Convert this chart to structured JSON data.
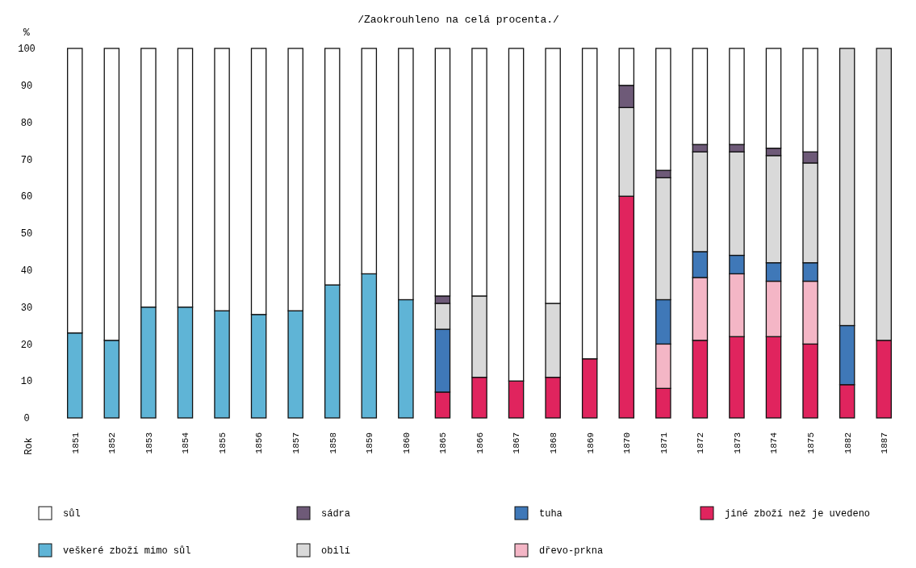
{
  "chart_data": {
    "type": "bar",
    "stacked": true,
    "title": "/Zaokrouhleno na celá procenta./",
    "ylabel": "%",
    "annotations": [
      "Rok"
    ],
    "categories": [
      "1851",
      "1852",
      "1853",
      "1854",
      "1855",
      "1856",
      "1857",
      "1858",
      "1859",
      "1860",
      "1865",
      "1866",
      "1867",
      "1868",
      "1869",
      "1870",
      "1871",
      "1872",
      "1873",
      "1874",
      "1875",
      "1882",
      "1887"
    ],
    "series": [
      {
        "name": "veškeré zboží mimo sůl",
        "color": "#5fb4d6",
        "values": [
          23,
          21,
          30,
          30,
          29,
          28,
          29,
          36,
          39,
          32,
          null,
          null,
          null,
          null,
          null,
          null,
          null,
          null,
          null,
          null,
          null,
          null,
          null
        ]
      },
      {
        "name": "jiné zboží než je uvedeno",
        "color": "#e0245e",
        "values": [
          null,
          null,
          null,
          null,
          null,
          null,
          null,
          null,
          null,
          null,
          7,
          11,
          10,
          11,
          16,
          60,
          8,
          21,
          22,
          22,
          20,
          9,
          21
        ]
      },
      {
        "name": "dřevo-prkna",
        "color": "#f4b6c6",
        "values": [
          null,
          null,
          null,
          null,
          null,
          null,
          null,
          null,
          null,
          null,
          null,
          null,
          null,
          null,
          null,
          null,
          12,
          17,
          17,
          15,
          17,
          null,
          null
        ]
      },
      {
        "name": "tuha",
        "color": "#3f78b8",
        "values": [
          null,
          null,
          null,
          null,
          null,
          null,
          null,
          null,
          null,
          null,
          17,
          null,
          null,
          null,
          null,
          null,
          12,
          7,
          5,
          5,
          5,
          16,
          null
        ]
      },
      {
        "name": "obilí",
        "color": "#d9d9d9",
        "values": [
          null,
          null,
          null,
          null,
          null,
          null,
          null,
          null,
          null,
          null,
          7,
          22,
          null,
          20,
          null,
          24,
          33,
          27,
          28,
          29,
          27,
          75,
          79
        ]
      },
      {
        "name": "sádra",
        "color": "#6e5a78",
        "values": [
          null,
          null,
          null,
          null,
          null,
          null,
          null,
          null,
          null,
          null,
          2,
          null,
          null,
          null,
          null,
          6,
          2,
          2,
          2,
          2,
          3,
          null,
          null
        ]
      },
      {
        "name": "sůl",
        "color": "#ffffff",
        "values": [
          77,
          79,
          70,
          70,
          71,
          72,
          71,
          64,
          61,
          68,
          67,
          67,
          90,
          69,
          84,
          10,
          33,
          26,
          26,
          27,
          28,
          null,
          null
        ]
      }
    ],
    "ylim": [
      0,
      100
    ],
    "yticks": [
      0,
      10,
      20,
      30,
      40,
      50,
      60,
      70,
      80,
      90,
      100
    ],
    "grid": false,
    "legend": "bottom"
  }
}
